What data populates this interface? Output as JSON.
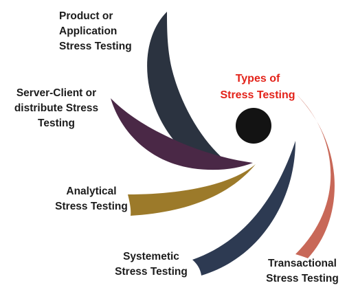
{
  "center": {
    "lines": [
      "Types of",
      "Stress Testing"
    ],
    "title_color": "#e32219",
    "hub_color": "#131313"
  },
  "types": [
    {
      "lines": [
        "Product or",
        "Application",
        "Stress Testing"
      ],
      "color": "#2b3340"
    },
    {
      "lines": [
        "Server-Client or",
        "distribute Stress",
        "Testing"
      ],
      "color": "#4a2846"
    },
    {
      "lines": [
        "Analytical",
        "Stress Testing"
      ],
      "color": "#9c7a2a"
    },
    {
      "lines": [
        "Systemetic",
        "Stress Testing"
      ],
      "color": "#2d3a52"
    },
    {
      "lines": [
        "Transactional",
        "Stress Testing"
      ],
      "color": "#c86858"
    }
  ]
}
